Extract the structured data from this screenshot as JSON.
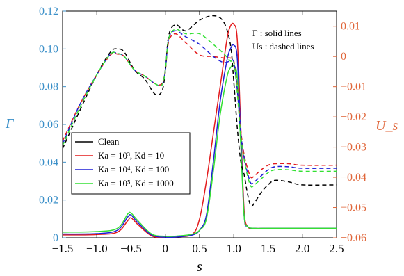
{
  "chart_data": {
    "type": "line",
    "xlabel": "s",
    "ylabel_left": "Γ",
    "ylabel_right": "U_s",
    "xlim": [
      -1.5,
      2.5
    ],
    "ylim_left": [
      0,
      0.12
    ],
    "ylim_right": [
      -0.06,
      0.015
    ],
    "xticks": [
      "−1.5",
      "−1.0",
      "−0.5",
      "0",
      "0.5",
      "1.0",
      "1.5",
      "2.0",
      "2.5"
    ],
    "yticks_left": [
      "0",
      "0.02",
      "0.04",
      "0.06",
      "0.08",
      "0.10",
      "0.12"
    ],
    "yticks_right": [
      "−0.06",
      "−0.05",
      "−0.04",
      "−0.03",
      "−0.02",
      "−0.01",
      "0",
      "0.01"
    ],
    "annotation_line1": "Γ : solid lines",
    "annotation_line2": "Us : dashed lines",
    "legend": [
      {
        "label": "Clean",
        "color": "#000000"
      },
      {
        "label": "Ka = 10³, Kd = 10",
        "color": "#e31a1c"
      },
      {
        "label": "Ka = 10⁴, Kd = 100",
        "color": "#1f1fd6"
      },
      {
        "label": "Ka = 10⁵, Kd = 1000",
        "color": "#33e033"
      }
    ],
    "series": [
      {
        "name": "Ka = 10³, Kd = 10",
        "axis": "left",
        "style": "solid",
        "color": "#e31a1c",
        "x": [
          -1.5,
          -1.0,
          -0.7,
          -0.55,
          -0.5,
          -0.4,
          -0.2,
          0.0,
          0.2,
          0.4,
          0.5,
          0.6,
          0.7,
          0.8,
          0.9,
          0.95,
          1.0,
          1.05,
          1.1,
          1.15,
          1.2,
          1.3,
          1.5,
          2.0,
          2.5
        ],
        "y": [
          0.0015,
          0.0017,
          0.003,
          0.009,
          0.0105,
          0.007,
          0.001,
          0.0002,
          0.0005,
          0.002,
          0.01,
          0.03,
          0.055,
          0.08,
          0.105,
          0.112,
          0.113,
          0.105,
          0.06,
          0.015,
          0.006,
          0.005,
          0.005,
          0.005,
          0.005
        ]
      },
      {
        "name": "Ka = 10⁴, Kd = 100",
        "axis": "left",
        "style": "solid",
        "color": "#1f1fd6",
        "x": [
          -1.5,
          -1.0,
          -0.7,
          -0.55,
          -0.5,
          -0.4,
          -0.2,
          0.0,
          0.2,
          0.4,
          0.5,
          0.6,
          0.7,
          0.8,
          0.9,
          0.95,
          1.0,
          1.05,
          1.1,
          1.15,
          1.2,
          1.3,
          1.5,
          2.0,
          2.5
        ],
        "y": [
          0.002,
          0.0022,
          0.004,
          0.011,
          0.012,
          0.008,
          0.0015,
          0.0003,
          0.0005,
          0.0015,
          0.004,
          0.012,
          0.04,
          0.072,
          0.094,
          0.1,
          0.102,
          0.095,
          0.055,
          0.012,
          0.006,
          0.005,
          0.005,
          0.005,
          0.005
        ]
      },
      {
        "name": "Ka = 10⁵, Kd = 1000",
        "axis": "left",
        "style": "solid",
        "color": "#33e033",
        "x": [
          -1.5,
          -1.0,
          -0.7,
          -0.55,
          -0.5,
          -0.4,
          -0.2,
          0.0,
          0.2,
          0.4,
          0.5,
          0.6,
          0.7,
          0.8,
          0.9,
          0.95,
          1.0,
          1.05,
          1.1,
          1.15,
          1.2,
          1.3,
          1.5,
          2.0,
          2.5
        ],
        "y": [
          0.003,
          0.0033,
          0.005,
          0.0125,
          0.013,
          0.009,
          0.002,
          0.0008,
          0.001,
          0.002,
          0.004,
          0.01,
          0.035,
          0.065,
          0.085,
          0.09,
          0.091,
          0.085,
          0.05,
          0.012,
          0.006,
          0.005,
          0.005,
          0.005,
          0.005
        ]
      },
      {
        "name": "Clean",
        "axis": "right",
        "style": "dashed",
        "color": "#000000",
        "x": [
          -1.5,
          -1.25,
          -1.0,
          -0.8,
          -0.7,
          -0.6,
          -0.45,
          -0.3,
          -0.15,
          -0.05,
          0.0,
          0.05,
          0.15,
          0.3,
          0.5,
          0.7,
          0.85,
          0.95,
          1.0,
          1.05,
          1.1,
          1.15,
          1.2,
          1.25,
          1.3,
          1.4,
          1.5,
          1.6,
          1.8,
          2.0,
          2.5
        ],
        "y": [
          -0.0305,
          -0.018,
          -0.006,
          0.0015,
          0.0025,
          0.0015,
          -0.0045,
          -0.0075,
          -0.0125,
          -0.0115,
          -0.005,
          0.007,
          0.0105,
          0.0085,
          0.012,
          0.0135,
          0.0115,
          0.004,
          -0.0085,
          -0.0235,
          -0.0345,
          -0.039,
          -0.0455,
          -0.0495,
          -0.0485,
          -0.045,
          -0.0425,
          -0.041,
          -0.0415,
          -0.0425,
          -0.0425
        ]
      },
      {
        "name": "Ka = 10³, Kd = 10",
        "axis": "right",
        "style": "dashed",
        "color": "#e31a1c",
        "x": [
          -1.5,
          -1.25,
          -1.0,
          -0.8,
          -0.7,
          -0.6,
          -0.45,
          -0.3,
          -0.15,
          -0.05,
          0.0,
          0.05,
          0.15,
          0.3,
          0.5,
          0.7,
          0.85,
          0.95,
          1.0,
          1.05,
          1.1,
          1.15,
          1.2,
          1.25,
          1.3,
          1.4,
          1.5,
          1.6,
          1.8,
          2.0,
          2.5
        ],
        "y": [
          -0.028,
          -0.016,
          -0.006,
          0.0005,
          0.0008,
          0.0,
          -0.0045,
          -0.0065,
          -0.009,
          -0.009,
          -0.0045,
          0.005,
          0.0075,
          0.0045,
          0.0005,
          0.0,
          -0.0005,
          -0.0005,
          -0.0015,
          -0.01,
          -0.024,
          -0.0325,
          -0.037,
          -0.04,
          -0.0395,
          -0.0375,
          -0.036,
          -0.0355,
          -0.0355,
          -0.036,
          -0.036
        ]
      },
      {
        "name": "Ka = 10⁴, Kd = 100",
        "axis": "right",
        "style": "dashed",
        "color": "#1f1fd6",
        "x": [
          -1.5,
          -1.25,
          -1.0,
          -0.8,
          -0.7,
          -0.6,
          -0.45,
          -0.3,
          -0.15,
          -0.05,
          0.0,
          0.05,
          0.15,
          0.3,
          0.5,
          0.7,
          0.85,
          0.95,
          1.0,
          1.05,
          1.1,
          1.15,
          1.2,
          1.25,
          1.3,
          1.4,
          1.5,
          1.6,
          1.8,
          2.0,
          2.5
        ],
        "y": [
          -0.029,
          -0.016,
          -0.006,
          0.0008,
          0.001,
          0.0,
          -0.0045,
          -0.0065,
          -0.009,
          -0.0095,
          -0.0045,
          0.006,
          0.0085,
          0.0065,
          0.004,
          0.0,
          -0.002,
          -0.0015,
          -0.002,
          -0.011,
          -0.025,
          -0.0335,
          -0.0385,
          -0.042,
          -0.0415,
          -0.0395,
          -0.0375,
          -0.0365,
          -0.0365,
          -0.037,
          -0.037
        ]
      },
      {
        "name": "Ka = 10⁵, Kd = 1000",
        "axis": "right",
        "style": "dashed",
        "color": "#33e033",
        "x": [
          -1.5,
          -1.25,
          -1.0,
          -0.8,
          -0.7,
          -0.6,
          -0.45,
          -0.3,
          -0.15,
          -0.05,
          0.0,
          0.05,
          0.15,
          0.3,
          0.5,
          0.7,
          0.85,
          0.95,
          1.0,
          1.05,
          1.1,
          1.15,
          1.2,
          1.25,
          1.3,
          1.4,
          1.5,
          1.6,
          1.8,
          2.0,
          2.5
        ],
        "y": [
          -0.0295,
          -0.017,
          -0.006,
          0.0008,
          0.001,
          0.0,
          -0.0045,
          -0.0065,
          -0.009,
          -0.0095,
          -0.0045,
          0.006,
          0.009,
          0.0075,
          0.0075,
          0.004,
          0.001,
          -0.0015,
          -0.002,
          -0.012,
          -0.026,
          -0.034,
          -0.0395,
          -0.043,
          -0.0425,
          -0.0405,
          -0.0385,
          -0.0375,
          -0.0375,
          -0.038,
          -0.038
        ]
      }
    ]
  }
}
